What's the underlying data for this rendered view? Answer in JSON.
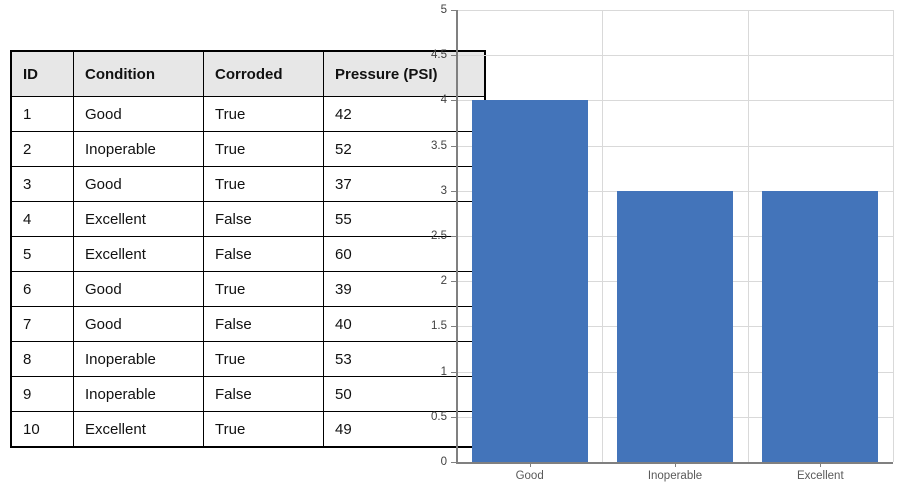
{
  "table": {
    "columns": [
      "ID",
      "Condition",
      "Corroded",
      "Pressure (PSI)"
    ],
    "rows": [
      [
        "1",
        "Good",
        "True",
        "42"
      ],
      [
        "2",
        "Inoperable",
        "True",
        "52"
      ],
      [
        "3",
        "Good",
        "True",
        "37"
      ],
      [
        "4",
        "Excellent",
        "False",
        "55"
      ],
      [
        "5",
        "Excellent",
        "False",
        "60"
      ],
      [
        "6",
        "Good",
        "True",
        "39"
      ],
      [
        "7",
        "Good",
        "False",
        "40"
      ],
      [
        "8",
        "Inoperable",
        "True",
        "53"
      ],
      [
        "9",
        "Inoperable",
        "False",
        "50"
      ],
      [
        "10",
        "Excellent",
        "True",
        "49"
      ]
    ],
    "header_bg": "#e7e7e7",
    "border_color": "#000000"
  },
  "chart_data": {
    "type": "bar",
    "categories": [
      "Good",
      "Inoperable",
      "Excellent"
    ],
    "values": [
      4,
      3,
      3
    ],
    "title": "",
    "xlabel": "",
    "ylabel": "",
    "ylim": [
      0,
      5
    ],
    "ytick_step": 0.5,
    "ytick_labels": [
      "0",
      "0.5",
      "1",
      "1.5",
      "2",
      "2.5",
      "3",
      "3.5",
      "4",
      "4.5",
      "5"
    ],
    "grid": true,
    "legend": false,
    "bar_color": "#4374ba",
    "gridline_color": "#d9d9d9",
    "axis_color": "#808080",
    "y_label_color": "#404040",
    "x_label_color": "#595959"
  }
}
